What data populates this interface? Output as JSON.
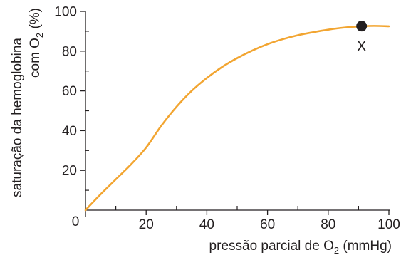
{
  "chart_data": {
    "type": "line",
    "xlabel": {
      "prefix": "pressão parcial de O",
      "sub": "2",
      "suffix": " (mmHg)"
    },
    "ylabel": {
      "line1": "saturação da hemoglobina",
      "line2_prefix": "com O",
      "line2_sub": "2",
      "line2_suffix": " (%)"
    },
    "xlim": [
      0,
      100
    ],
    "ylim": [
      0,
      100
    ],
    "x_ticks": [
      0,
      20,
      40,
      60,
      80,
      100
    ],
    "x_minor_ticks": [
      10,
      30,
      50,
      70,
      90
    ],
    "y_ticks": [
      20,
      40,
      60,
      80,
      100
    ],
    "y_minor_ticks": [
      10,
      30,
      50,
      70,
      90
    ],
    "origin_label": "0",
    "x_tick_labels": [
      "20",
      "40",
      "60",
      "80",
      "100"
    ],
    "y_tick_labels": [
      "20",
      "40",
      "60",
      "80",
      "100"
    ],
    "series": [
      {
        "color": "#f2a531",
        "points": [
          [
            0,
            0
          ],
          [
            5,
            8
          ],
          [
            10,
            15.5
          ],
          [
            15,
            23
          ],
          [
            20,
            31.5
          ],
          [
            25,
            42.5
          ],
          [
            30,
            52
          ],
          [
            35,
            60
          ],
          [
            40,
            66.5
          ],
          [
            45,
            72
          ],
          [
            50,
            76.5
          ],
          [
            55,
            80.3
          ],
          [
            60,
            83.5
          ],
          [
            65,
            86
          ],
          [
            70,
            88
          ],
          [
            75,
            89.5
          ],
          [
            80,
            90.8
          ],
          [
            85,
            91.8
          ],
          [
            90,
            92.4
          ],
          [
            95,
            92.7
          ],
          [
            100,
            92.5
          ]
        ]
      }
    ],
    "marker": {
      "x": 91,
      "y": 92.6,
      "label": "X",
      "color": "#231f20"
    },
    "grid": false
  }
}
